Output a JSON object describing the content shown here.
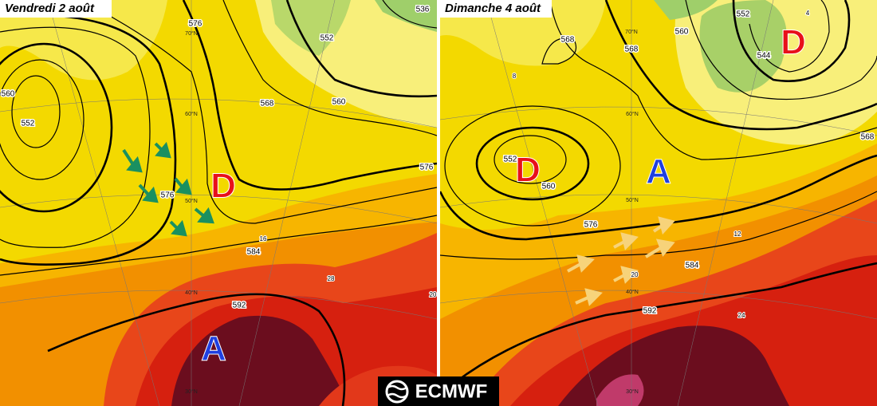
{
  "panels": [
    {
      "title": "Vendredi 2 août",
      "pressure_labels": [
        "D",
        "A"
      ],
      "contour_labels": [
        "560",
        "552",
        "576",
        "552",
        "536",
        "568",
        "560",
        "576",
        "584",
        "592",
        "576"
      ],
      "temperature_labels": [
        "16",
        "28",
        "20"
      ],
      "latitude_labels": [
        "70°N",
        "60°N",
        "50°N",
        "40°N",
        "30°N"
      ]
    },
    {
      "title": "Dimanche 4 août",
      "pressure_labels": [
        "D",
        "A",
        "D"
      ],
      "contour_labels": [
        "568",
        "568",
        "560",
        "552",
        "544",
        "552",
        "560",
        "576",
        "584",
        "592",
        "568"
      ],
      "temperature_labels": [
        "12",
        "20",
        "24",
        "8",
        "4"
      ],
      "latitude_labels": [
        "70°N",
        "60°N",
        "50°N",
        "40°N",
        "30°N"
      ]
    }
  ],
  "logo": "ECMWF"
}
